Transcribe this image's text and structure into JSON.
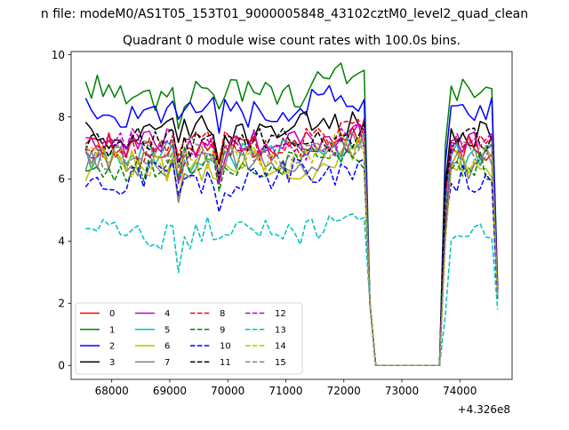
{
  "figure": {
    "suptitle": "n file: modeM0/AS1T05_153T01_9000005848_43102cztM0_level2_quad_clean",
    "title": "Quadrant 0 module wise count rates with 100.0s bins.",
    "x_offset_label": "+4.326e8"
  },
  "chart_data": {
    "type": "line",
    "title": "Quadrant 0 module wise count rates with 100.0s bins.",
    "xlabel": "",
    "ylabel": "",
    "xlim": [
      67300,
      74900
    ],
    "ylim": [
      -0.45,
      10.1
    ],
    "x_offset": 432600000,
    "x_ticks": [
      68000,
      69000,
      70000,
      71000,
      72000,
      73000,
      74000
    ],
    "y_ticks": [
      0,
      2,
      4,
      6,
      8,
      10
    ],
    "x_tick_labels": [
      "68000",
      "69000",
      "70000",
      "71000",
      "72000",
      "73000",
      "74000"
    ],
    "y_tick_labels": [
      "0",
      "2",
      "4",
      "6",
      "8",
      "10"
    ],
    "grid": false,
    "legend_position": "lower-left",
    "legend_ncol": 4,
    "seg1": {
      "x_start": 67550,
      "x_end": 72350,
      "step": 100
    },
    "gap": {
      "x": [
        72450,
        72550,
        73650
      ],
      "y": [
        2.0,
        0.0,
        0.0
      ]
    },
    "seg2": {
      "x_start": 73750,
      "x_end": 74550,
      "step": 100
    },
    "tail_x": 74650,
    "series": [
      {
        "name": "0",
        "color": "#ff0000",
        "dash": "solid",
        "base": 7.0,
        "tail": 2.4
      },
      {
        "name": "1",
        "color": "#008000",
        "dash": "solid",
        "base": 8.8,
        "tail": 2.6
      },
      {
        "name": "2",
        "color": "#0000ff",
        "dash": "solid",
        "base": 8.2,
        "tail": 2.5
      },
      {
        "name": "3",
        "color": "#000000",
        "dash": "solid",
        "base": 7.5,
        "tail": 2.3
      },
      {
        "name": "4",
        "color": "#bf00bf",
        "dash": "solid",
        "base": 7.1,
        "tail": 2.3
      },
      {
        "name": "5",
        "color": "#00bfbf",
        "dash": "solid",
        "base": 6.7,
        "tail": 2.2
      },
      {
        "name": "6",
        "color": "#bfbf00",
        "dash": "solid",
        "base": 6.4,
        "tail": 2.2
      },
      {
        "name": "7",
        "color": "#808080",
        "dash": "solid",
        "base": 6.5,
        "tail": 2.2
      },
      {
        "name": "8",
        "color": "#ff0000",
        "dash": "dashed",
        "base": 7.1,
        "tail": 2.3
      },
      {
        "name": "9",
        "color": "#008000",
        "dash": "dashed",
        "base": 6.4,
        "tail": 2.2
      },
      {
        "name": "10",
        "color": "#0000ff",
        "dash": "dashed",
        "base": 6.0,
        "tail": 2.1
      },
      {
        "name": "11",
        "color": "#000000",
        "dash": "dashed",
        "base": 7.2,
        "tail": 2.3
      },
      {
        "name": "12",
        "color": "#bf00bf",
        "dash": "dashed",
        "base": 7.0,
        "tail": 2.3
      },
      {
        "name": "13",
        "color": "#00bfbf",
        "dash": "dashed",
        "base": 4.3,
        "tail": 1.8
      },
      {
        "name": "14",
        "color": "#bfbf00",
        "dash": "dashed",
        "base": 6.6,
        "tail": 2.2
      },
      {
        "name": "15",
        "color": "#808080",
        "dash": "dashed",
        "base": 6.8,
        "tail": 2.2
      }
    ]
  }
}
